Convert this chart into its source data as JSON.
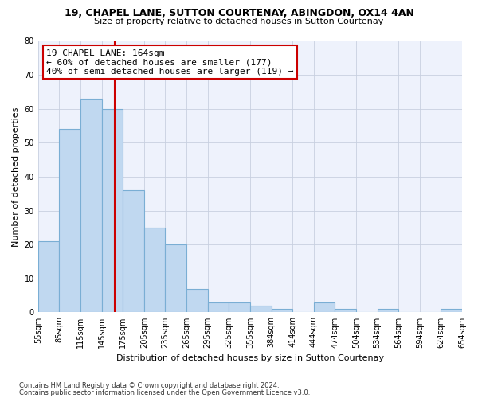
{
  "title1": "19, CHAPEL LANE, SUTTON COURTENAY, ABINGDON, OX14 4AN",
  "title2": "Size of property relative to detached houses in Sutton Courtenay",
  "xlabel": "Distribution of detached houses by size in Sutton Courtenay",
  "ylabel": "Number of detached properties",
  "footer1": "Contains HM Land Registry data © Crown copyright and database right 2024.",
  "footer2": "Contains public sector information licensed under the Open Government Licence v3.0.",
  "annotation_line1": "19 CHAPEL LANE: 164sqm",
  "annotation_line2": "← 60% of detached houses are smaller (177)",
  "annotation_line3": "40% of semi-detached houses are larger (119) →",
  "bar_values": [
    21,
    54,
    63,
    60,
    36,
    25,
    20,
    7,
    3,
    3,
    2,
    1,
    0,
    3,
    1,
    0,
    1,
    0,
    0,
    1
  ],
  "bin_labels": [
    "55sqm",
    "85sqm",
    "115sqm",
    "145sqm",
    "175sqm",
    "205sqm",
    "235sqm",
    "265sqm",
    "295sqm",
    "325sqm",
    "355sqm",
    "384sqm",
    "414sqm",
    "444sqm",
    "474sqm",
    "504sqm",
    "534sqm",
    "564sqm",
    "594sqm",
    "624sqm",
    "654sqm"
  ],
  "bar_color": "#c0d8f0",
  "bar_edge_color": "#7aaed4",
  "vline_color": "#cc0000",
  "annotation_box_edgecolor": "#cc0000",
  "background_color": "#eef2fc",
  "ylim": [
    0,
    80
  ],
  "yticks": [
    0,
    10,
    20,
    30,
    40,
    50,
    60,
    70,
    80
  ],
  "grid_color": "#c8d0e0",
  "title1_fontsize": 9,
  "title2_fontsize": 8,
  "xlabel_fontsize": 8,
  "ylabel_fontsize": 8,
  "tick_fontsize": 7,
  "annotation_fontsize": 8,
  "footer_fontsize": 6
}
